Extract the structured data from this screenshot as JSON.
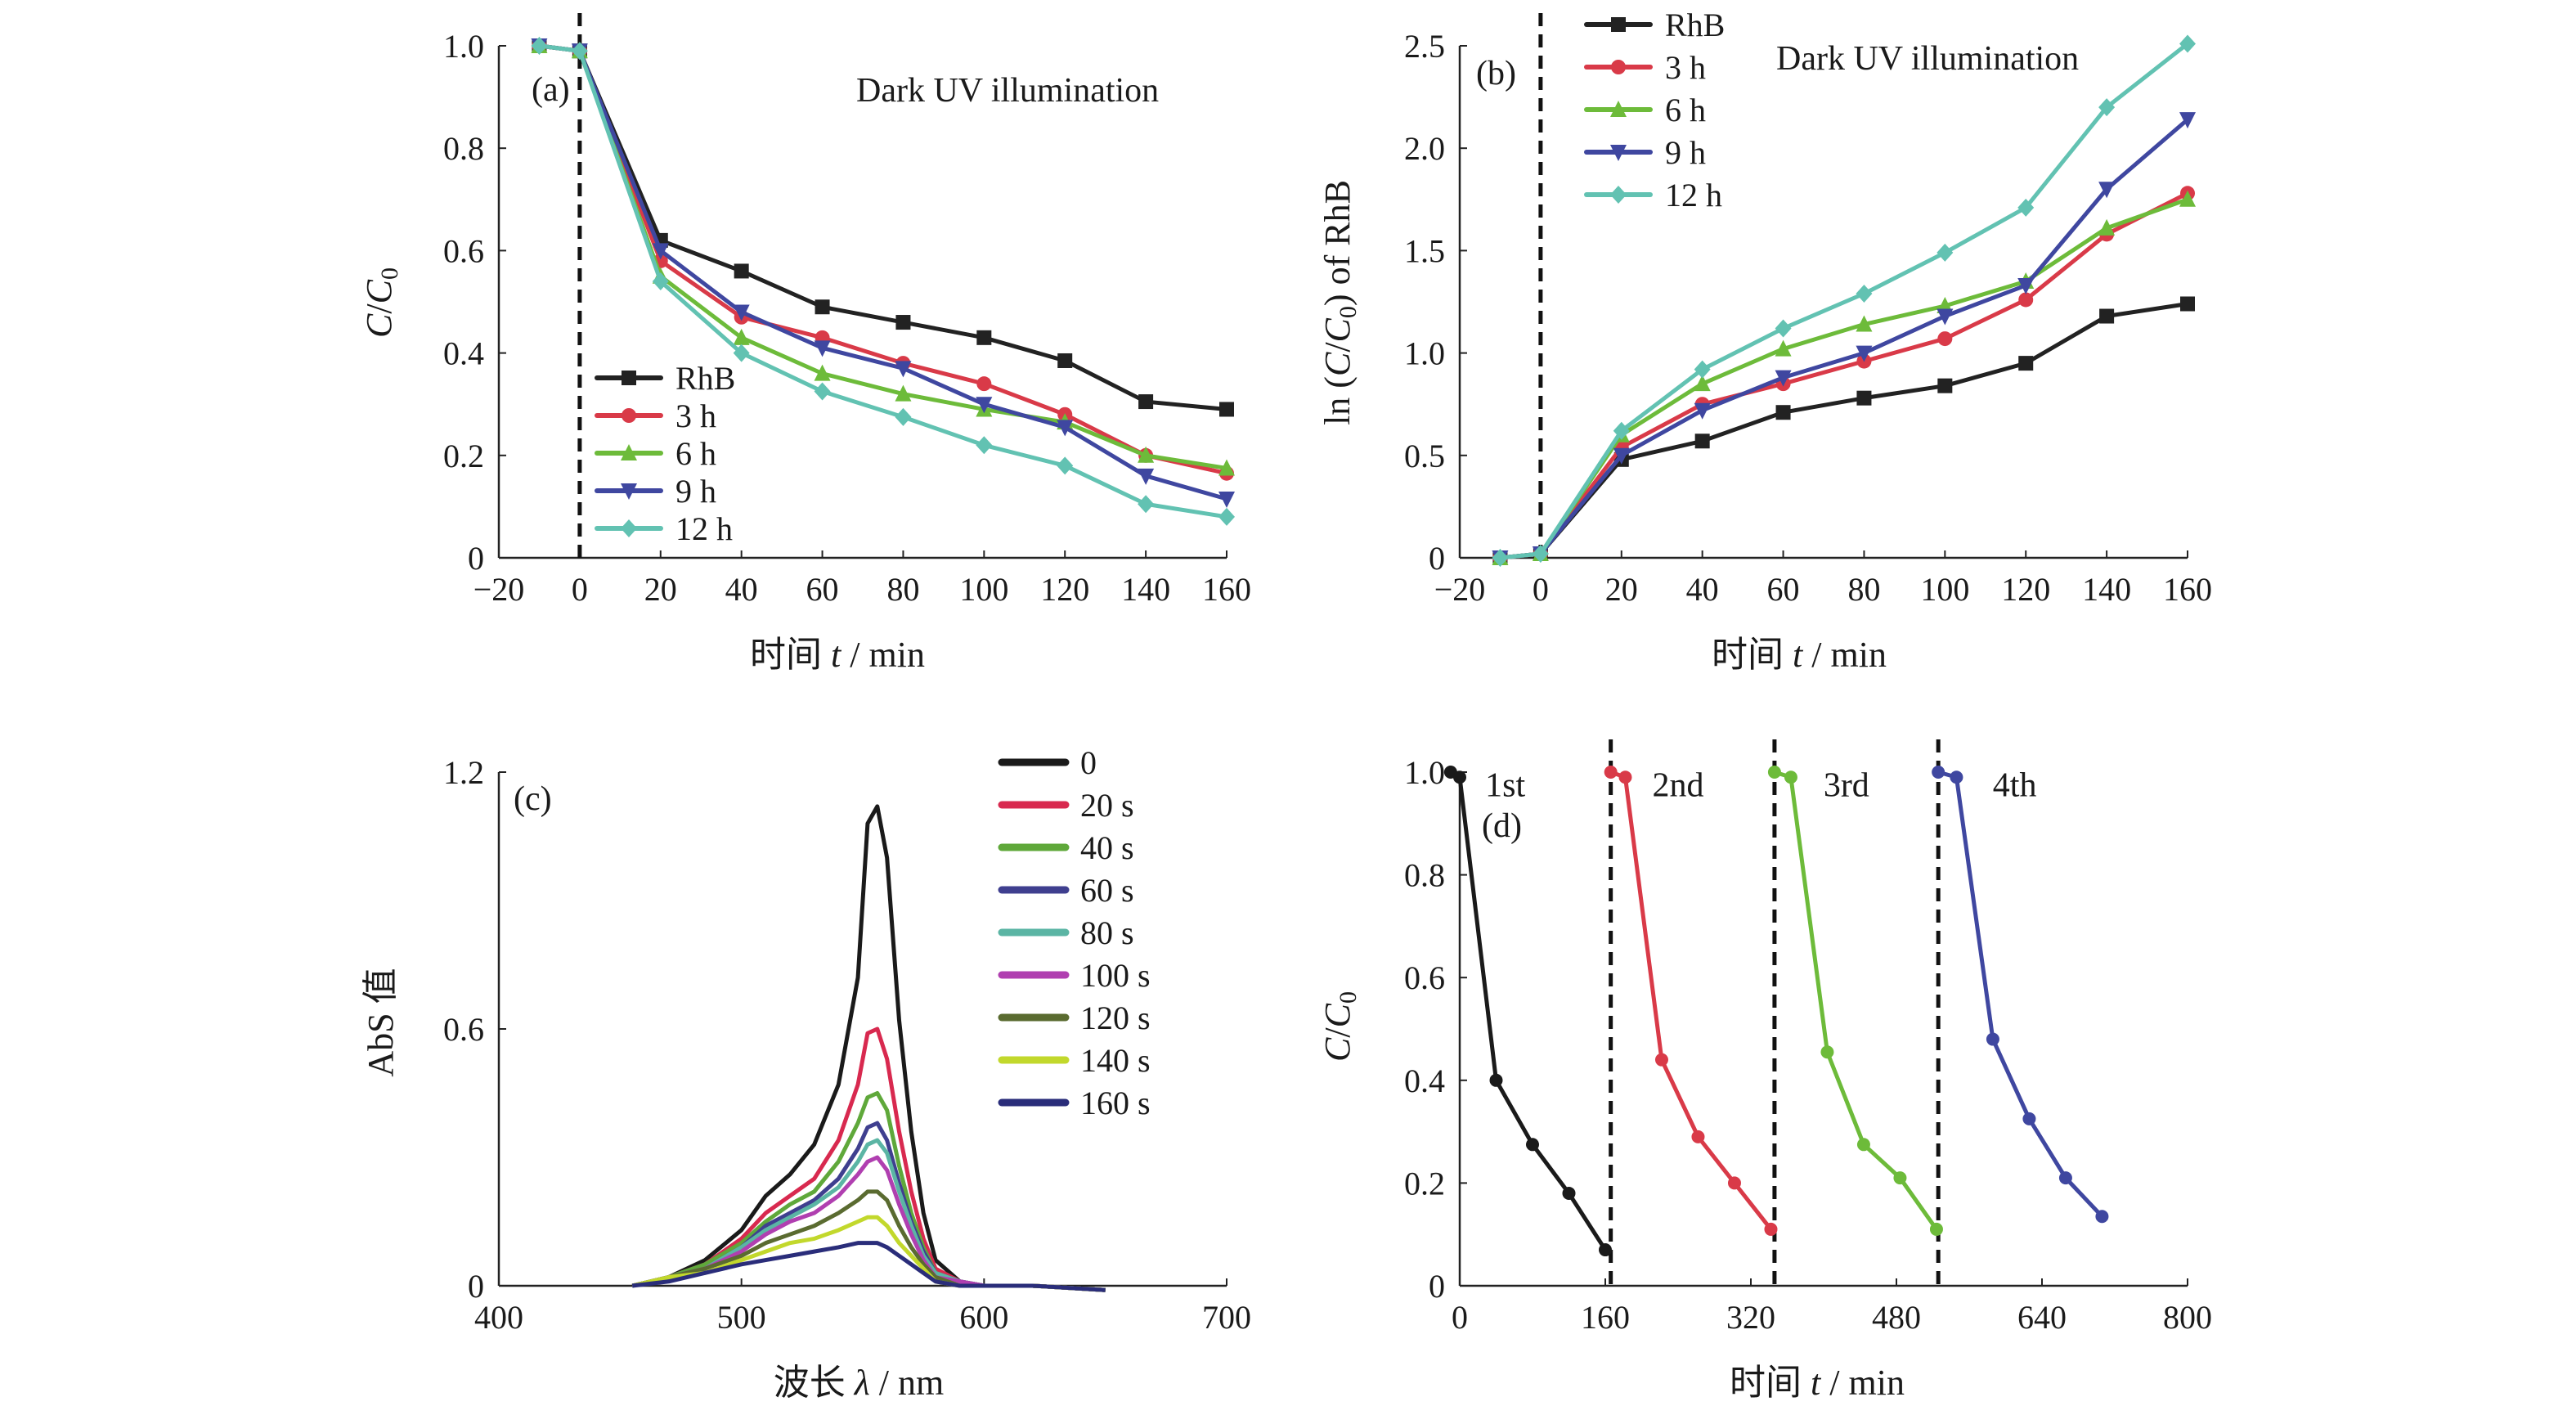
{
  "chart_data": [
    {
      "panel": "(a)",
      "type": "line",
      "annotation": "Dark UV illumination",
      "xlabel": "时间 t / min",
      "ylabel": "C/C0",
      "xlim": [
        -20,
        160
      ],
      "ylim": [
        0,
        1.0
      ],
      "xticks": [
        -20,
        0,
        20,
        40,
        60,
        80,
        100,
        120,
        140,
        160
      ],
      "xtick_labels": [
        "−20",
        "0",
        "20",
        "40",
        "60",
        "80",
        "100",
        "120",
        "140",
        "160"
      ],
      "yticks": [
        0,
        0.2,
        0.4,
        0.6,
        0.8,
        1.0
      ],
      "ytick_labels": [
        "0",
        "0.2",
        "0.4",
        "0.6",
        "0.8",
        "1.0"
      ],
      "dashed_vline_x": 0,
      "legend_position": "bottom-left",
      "x": [
        -10,
        0,
        20,
        40,
        60,
        80,
        100,
        120,
        140,
        160
      ],
      "series": [
        {
          "name": "RhB",
          "color": "#222222",
          "marker": "square",
          "values": [
            1.0,
            0.99,
            0.62,
            0.56,
            0.49,
            0.46,
            0.43,
            0.385,
            0.305,
            0.29
          ]
        },
        {
          "name": "3 h",
          "color": "#d93a48",
          "marker": "circle",
          "values": [
            1.0,
            0.99,
            0.58,
            0.47,
            0.43,
            0.38,
            0.34,
            0.28,
            0.2,
            0.165
          ]
        },
        {
          "name": "6 h",
          "color": "#6dbb3a",
          "marker": "triangle-up",
          "values": [
            1.0,
            0.99,
            0.55,
            0.43,
            0.36,
            0.32,
            0.29,
            0.265,
            0.2,
            0.175
          ]
        },
        {
          "name": "9 h",
          "color": "#3f47a0",
          "marker": "triangle-down",
          "values": [
            1.0,
            0.99,
            0.6,
            0.48,
            0.41,
            0.37,
            0.3,
            0.255,
            0.16,
            0.115
          ]
        },
        {
          "name": "12 h",
          "color": "#62c2b2",
          "marker": "diamond",
          "values": [
            1.0,
            0.99,
            0.54,
            0.4,
            0.325,
            0.275,
            0.22,
            0.18,
            0.105,
            0.08
          ]
        }
      ]
    },
    {
      "panel": "(b)",
      "type": "line",
      "annotation": "Dark UV illumination",
      "xlabel": "时间 t / min",
      "ylabel": "ln (C/C0) of RhB",
      "xlim": [
        -20,
        160
      ],
      "ylim": [
        0,
        2.5
      ],
      "xticks": [
        -20,
        0,
        20,
        40,
        60,
        80,
        100,
        120,
        140,
        160
      ],
      "xtick_labels": [
        "−20",
        "0",
        "20",
        "40",
        "60",
        "80",
        "100",
        "120",
        "140",
        "160"
      ],
      "yticks": [
        0,
        0.5,
        1.0,
        1.5,
        2.0,
        2.5
      ],
      "ytick_labels": [
        "0",
        "0.5",
        "1.0",
        "1.5",
        "2.0",
        "2.5"
      ],
      "dashed_vline_x": 0,
      "legend_position": "top-left",
      "x": [
        -10,
        0,
        20,
        40,
        60,
        80,
        100,
        120,
        140,
        160
      ],
      "series": [
        {
          "name": "RhB",
          "color": "#222222",
          "marker": "square",
          "values": [
            0,
            0.02,
            0.48,
            0.57,
            0.71,
            0.78,
            0.84,
            0.95,
            1.18,
            1.24
          ]
        },
        {
          "name": "3 h",
          "color": "#d93a48",
          "marker": "circle",
          "values": [
            0,
            0.02,
            0.54,
            0.75,
            0.85,
            0.96,
            1.07,
            1.26,
            1.58,
            1.78
          ]
        },
        {
          "name": "6 h",
          "color": "#6dbb3a",
          "marker": "triangle-up",
          "values": [
            0,
            0.02,
            0.6,
            0.85,
            1.02,
            1.14,
            1.23,
            1.35,
            1.61,
            1.75
          ]
        },
        {
          "name": "9 h",
          "color": "#3f47a0",
          "marker": "triangle-down",
          "values": [
            0,
            0.02,
            0.5,
            0.72,
            0.88,
            1.0,
            1.18,
            1.33,
            1.8,
            2.14
          ]
        },
        {
          "name": "12 h",
          "color": "#62c2b2",
          "marker": "diamond",
          "values": [
            0,
            0.02,
            0.62,
            0.92,
            1.12,
            1.29,
            1.49,
            1.71,
            2.2,
            2.51
          ]
        }
      ]
    },
    {
      "panel": "(c)",
      "type": "line",
      "xlabel": "波长 λ / nm",
      "ylabel": "AbS 值",
      "xlim": [
        400,
        700
      ],
      "ylim": [
        0,
        1.2
      ],
      "xticks": [
        400,
        500,
        600,
        700
      ],
      "xtick_labels": [
        "400",
        "500",
        "600",
        "700"
      ],
      "yticks": [
        0,
        0.6,
        1.2
      ],
      "ytick_labels": [
        "0",
        "0.6",
        "1.2"
      ],
      "legend_position": "top-right",
      "x": [
        455,
        470,
        485,
        500,
        510,
        520,
        530,
        540,
        548,
        552,
        556,
        560,
        565,
        570,
        575,
        580,
        590,
        600,
        620,
        650
      ],
      "series": [
        {
          "name": "0",
          "color": "#1a1a1a",
          "values": [
            0.0,
            0.02,
            0.06,
            0.13,
            0.21,
            0.26,
            0.33,
            0.47,
            0.72,
            1.08,
            1.12,
            1.0,
            0.62,
            0.36,
            0.17,
            0.06,
            0.01,
            0.0,
            0.0,
            -0.01
          ]
        },
        {
          "name": "20 s",
          "color": "#d8294f",
          "values": [
            0.0,
            0.02,
            0.05,
            0.11,
            0.17,
            0.21,
            0.25,
            0.34,
            0.47,
            0.59,
            0.6,
            0.53,
            0.36,
            0.22,
            0.11,
            0.04,
            0.01,
            0.0,
            0.0,
            -0.01
          ]
        },
        {
          "name": "40 s",
          "color": "#5fa83a",
          "values": [
            0.0,
            0.02,
            0.05,
            0.1,
            0.15,
            0.19,
            0.22,
            0.29,
            0.38,
            0.44,
            0.45,
            0.41,
            0.28,
            0.17,
            0.09,
            0.03,
            0.01,
            0.0,
            0.0,
            -0.01
          ]
        },
        {
          "name": "60 s",
          "color": "#3f3f8f",
          "values": [
            0.0,
            0.02,
            0.04,
            0.09,
            0.14,
            0.17,
            0.2,
            0.25,
            0.32,
            0.37,
            0.38,
            0.34,
            0.24,
            0.15,
            0.08,
            0.03,
            0.01,
            0.0,
            0.0,
            -0.01
          ]
        },
        {
          "name": "80 s",
          "color": "#5bb5a4",
          "values": [
            0.0,
            0.02,
            0.04,
            0.09,
            0.13,
            0.16,
            0.19,
            0.23,
            0.29,
            0.33,
            0.34,
            0.31,
            0.22,
            0.14,
            0.07,
            0.03,
            0.01,
            0.0,
            0.0,
            -0.01
          ]
        },
        {
          "name": "100 s",
          "color": "#b03fb0",
          "values": [
            0.0,
            0.02,
            0.04,
            0.08,
            0.12,
            0.15,
            0.17,
            0.21,
            0.26,
            0.29,
            0.3,
            0.27,
            0.19,
            0.12,
            0.06,
            0.02,
            0.01,
            0.0,
            0.0,
            -0.01
          ]
        },
        {
          "name": "120 s",
          "color": "#5a6b30",
          "values": [
            0.0,
            0.02,
            0.04,
            0.07,
            0.1,
            0.12,
            0.14,
            0.17,
            0.2,
            0.22,
            0.22,
            0.2,
            0.14,
            0.09,
            0.05,
            0.02,
            0.0,
            0.0,
            0.0,
            -0.01
          ]
        },
        {
          "name": "140 s",
          "color": "#c2d82c",
          "values": [
            0.0,
            0.02,
            0.03,
            0.06,
            0.08,
            0.1,
            0.11,
            0.13,
            0.15,
            0.16,
            0.16,
            0.14,
            0.1,
            0.07,
            0.04,
            0.01,
            0.0,
            0.0,
            0.0,
            -0.01
          ]
        },
        {
          "name": "160 s",
          "color": "#2a2d7a",
          "values": [
            0.0,
            0.01,
            0.03,
            0.05,
            0.06,
            0.07,
            0.08,
            0.09,
            0.1,
            0.1,
            0.1,
            0.09,
            0.07,
            0.05,
            0.03,
            0.01,
            0.0,
            0.0,
            0.0,
            -0.01
          ]
        }
      ]
    },
    {
      "panel": "(d)",
      "type": "line",
      "xlabel": "时间 t / min",
      "ylabel": "C/C0",
      "xlim": [
        0,
        800
      ],
      "ylim": [
        0,
        1.0
      ],
      "xticks": [
        0,
        160,
        320,
        480,
        640,
        800
      ],
      "xtick_labels": [
        "0",
        "160",
        "320",
        "480",
        "640",
        "800"
      ],
      "yticks": [
        0,
        0.2,
        0.4,
        0.6,
        0.8,
        1.0
      ],
      "ytick_labels": [
        "0",
        "0.2",
        "0.4",
        "0.6",
        "0.8",
        "1.0"
      ],
      "dashed_vlines_x": [
        166,
        346,
        526
      ],
      "cycle_labels": [
        {
          "text": "1st",
          "x": 50,
          "y": 0.975
        },
        {
          "text": "2nd",
          "x": 240,
          "y": 0.975
        },
        {
          "text": "3rd",
          "x": 425,
          "y": 0.975
        },
        {
          "text": "4th",
          "x": 610,
          "y": 0.975
        }
      ],
      "series": [
        {
          "name": "1st",
          "color": "#1a1a1a",
          "x": [
            -10,
            0,
            40,
            80,
            120,
            160
          ],
          "values": [
            1.0,
            0.99,
            0.4,
            0.275,
            0.18,
            0.07
          ]
        },
        {
          "name": "2nd",
          "color": "#d93a48",
          "x": [
            166,
            182,
            222,
            262,
            302,
            342
          ],
          "values": [
            1.0,
            0.99,
            0.44,
            0.29,
            0.2,
            0.11
          ]
        },
        {
          "name": "3rd",
          "color": "#6dbb3a",
          "x": [
            346,
            364,
            404,
            444,
            484,
            524
          ],
          "values": [
            1.0,
            0.99,
            0.455,
            0.275,
            0.21,
            0.11
          ]
        },
        {
          "name": "4th",
          "color": "#3f47a0",
          "x": [
            526,
            546,
            586,
            626,
            666,
            706
          ],
          "values": [
            1.0,
            0.99,
            0.48,
            0.325,
            0.21,
            0.135
          ]
        }
      ]
    }
  ],
  "panels": {
    "a": {
      "label": "(a)",
      "annotation": "Dark UV illumination",
      "xlabel_cn": "时间",
      "xlabel_var": "t",
      "xlabel_unit": " / min"
    },
    "b": {
      "label": "(b)",
      "annotation": "Dark UV illumination",
      "xlabel_cn": "时间",
      "xlabel_var": "t",
      "xlabel_unit": " / min",
      "ylabel_pre": "ln (",
      "ylabel_post": ") of RhB"
    },
    "c": {
      "label": "(c)",
      "xlabel_cn": "波长",
      "xlabel_var": "λ",
      "xlabel_unit": " / nm",
      "ylabel": "AbS 值"
    },
    "d": {
      "label": "(d)",
      "xlabel_cn": "时间",
      "xlabel_var": "t",
      "xlabel_unit": " / min"
    }
  }
}
